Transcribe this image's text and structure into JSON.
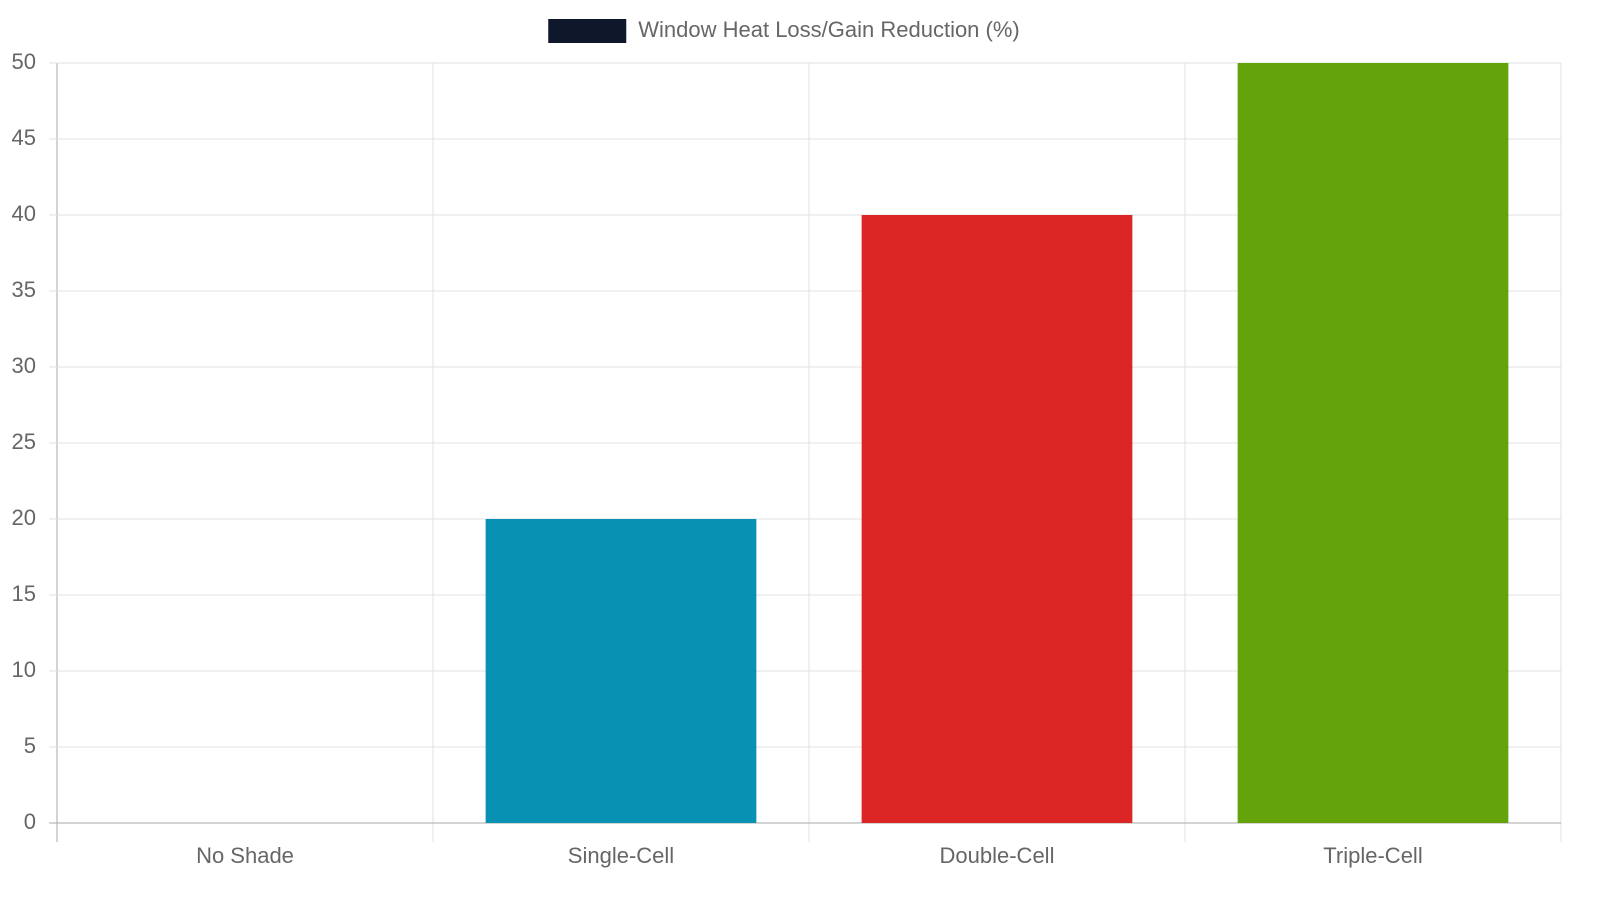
{
  "chart_data": {
    "type": "bar",
    "categories": [
      "No Shade",
      "Single-Cell",
      "Double-Cell",
      "Triple-Cell"
    ],
    "series": [
      {
        "name": "Window Heat Loss/Gain Reduction (%)",
        "colors": [
          "#0f172a",
          "#0891b2",
          "#dc2626",
          "#65a30d"
        ],
        "values": [
          0,
          20,
          40,
          50
        ]
      }
    ],
    "ylim": [
      0,
      50
    ],
    "yticks": [
      0,
      5,
      10,
      15,
      20,
      25,
      30,
      35,
      40,
      45,
      50
    ],
    "grid": true,
    "legend": "top"
  }
}
